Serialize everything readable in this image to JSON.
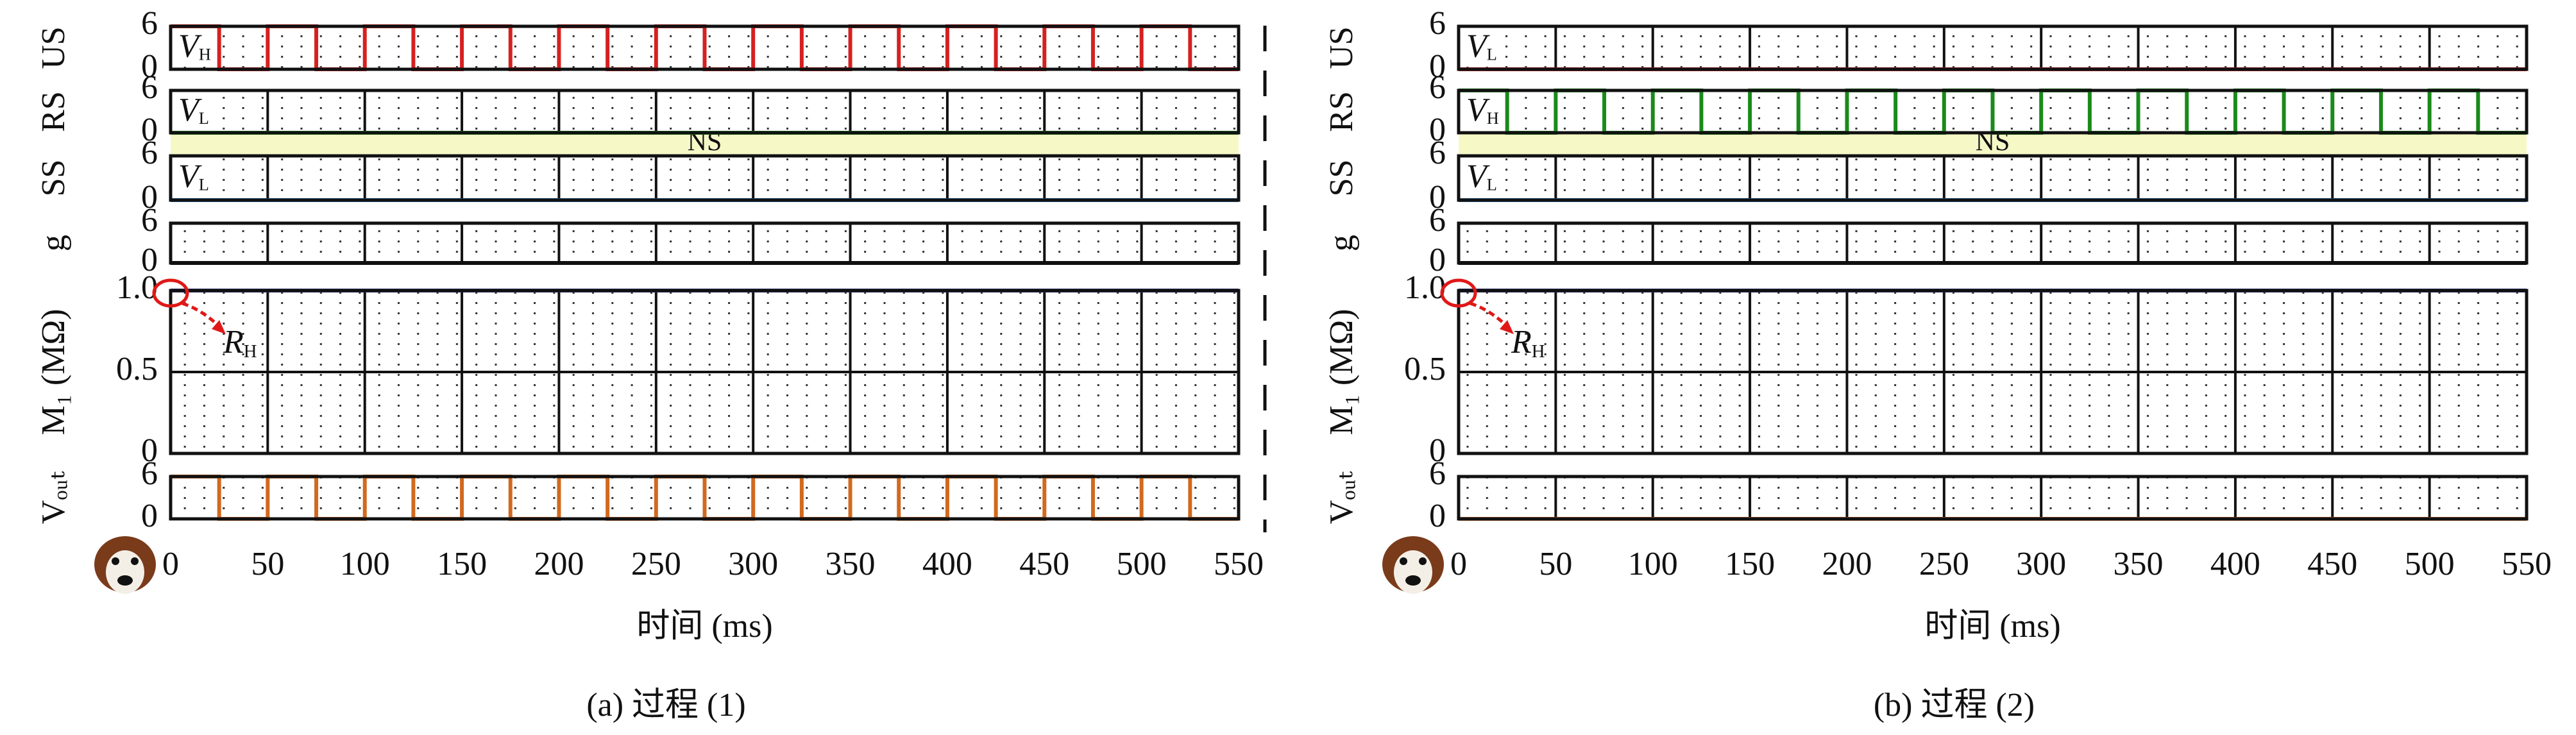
{
  "chart_data": [
    {
      "type": "step",
      "caption": "(a) 过程 (1)",
      "xlabel": "时间 (ms)",
      "ns_label": "NS",
      "xlim": [
        0,
        550
      ],
      "xticks": [
        0,
        50,
        100,
        150,
        200,
        250,
        300,
        350,
        400,
        450,
        500,
        550
      ],
      "subplots": [
        {
          "ylabel": "US",
          "color": "#d62020",
          "ylim": [
            0,
            6
          ],
          "yticks": [
            0,
            6
          ],
          "annotation": {
            "text": "V",
            "sub": "H"
          },
          "x": [
            0,
            25,
            50,
            75,
            100,
            125,
            150,
            175,
            200,
            225,
            250,
            275,
            300,
            325,
            350,
            375,
            400,
            425,
            450,
            475,
            500,
            525,
            550
          ],
          "values": [
            6,
            0,
            6,
            0,
            6,
            0,
            6,
            0,
            6,
            0,
            6,
            0,
            6,
            0,
            6,
            0,
            6,
            0,
            6,
            0,
            6,
            0,
            0
          ]
        },
        {
          "ylabel": "RS",
          "color": "#1a8a1a",
          "ylim": [
            0,
            6
          ],
          "yticks": [
            0,
            6
          ],
          "annotation": {
            "text": "V",
            "sub": "L"
          },
          "x": [
            0,
            550
          ],
          "values": [
            0,
            0
          ]
        },
        {
          "ylabel": "SS",
          "color": "#1f6fb4",
          "ylim": [
            0,
            6
          ],
          "yticks": [
            0,
            6
          ],
          "annotation": {
            "text": "V",
            "sub": "L"
          },
          "x": [
            0,
            550
          ],
          "values": [
            0,
            0
          ]
        },
        {
          "ylabel": "g",
          "color": "#000000",
          "ylim": [
            0,
            6
          ],
          "yticks": [
            0,
            6
          ],
          "x": [
            0,
            550
          ],
          "values": [
            0,
            0
          ]
        },
        {
          "ylabel": "M₁ (MΩ)",
          "color": "#2b2b8c",
          "ylim": [
            0,
            1
          ],
          "yticks": [
            0,
            0.5,
            {
              "value": 1,
              "label": "1.0"
            }
          ],
          "marker_label": {
            "text": "R",
            "sub": "H"
          },
          "x": [
            0,
            550
          ],
          "values": [
            1,
            1
          ]
        },
        {
          "ylabel": "Vₒᵤₜ",
          "color": "#d2691e",
          "ylim": [
            0,
            6
          ],
          "yticks": [
            0,
            6
          ],
          "x": [
            0,
            25,
            50,
            75,
            100,
            125,
            150,
            175,
            200,
            225,
            250,
            275,
            300,
            325,
            350,
            375,
            400,
            425,
            450,
            475,
            500,
            525,
            550
          ],
          "values": [
            6,
            0,
            6,
            0,
            6,
            0,
            6,
            0,
            6,
            0,
            6,
            0,
            6,
            0,
            6,
            0,
            6,
            0,
            6,
            0,
            6,
            0,
            0
          ]
        }
      ]
    },
    {
      "type": "step",
      "caption": "(b) 过程 (2)",
      "xlabel": "时间 (ms)",
      "ns_label": "NS",
      "xlim": [
        0,
        550
      ],
      "xticks": [
        0,
        50,
        100,
        150,
        200,
        250,
        300,
        350,
        400,
        450,
        500,
        550
      ],
      "subplots": [
        {
          "ylabel": "US",
          "color": "#d62020",
          "ylim": [
            0,
            6
          ],
          "yticks": [
            0,
            6
          ],
          "annotation": {
            "text": "V",
            "sub": "L"
          },
          "x": [
            0,
            550
          ],
          "values": [
            0,
            0
          ]
        },
        {
          "ylabel": "RS",
          "color": "#1a8a1a",
          "ylim": [
            0,
            6
          ],
          "yticks": [
            0,
            6
          ],
          "annotation": {
            "text": "V",
            "sub": "H"
          },
          "x": [
            0,
            25,
            50,
            75,
            100,
            125,
            150,
            175,
            200,
            225,
            250,
            275,
            300,
            325,
            350,
            375,
            400,
            425,
            450,
            475,
            500,
            525,
            550
          ],
          "values": [
            6,
            0,
            6,
            0,
            6,
            0,
            6,
            0,
            6,
            0,
            6,
            0,
            6,
            0,
            6,
            0,
            6,
            0,
            6,
            0,
            6,
            0,
            0
          ]
        },
        {
          "ylabel": "SS",
          "color": "#1f6fb4",
          "ylim": [
            0,
            6
          ],
          "yticks": [
            0,
            6
          ],
          "annotation": {
            "text": "V",
            "sub": "L"
          },
          "x": [
            0,
            550
          ],
          "values": [
            0,
            0
          ]
        },
        {
          "ylabel": "g",
          "color": "#000000",
          "ylim": [
            0,
            6
          ],
          "yticks": [
            0,
            6
          ],
          "x": [
            0,
            550
          ],
          "values": [
            0,
            0
          ]
        },
        {
          "ylabel": "M₁ (MΩ)",
          "color": "#2b2b8c",
          "ylim": [
            0,
            1
          ],
          "yticks": [
            0,
            0.5,
            {
              "value": 1,
              "label": "1.0"
            }
          ],
          "marker_label": {
            "text": "R",
            "sub": "H"
          },
          "x": [
            0,
            550
          ],
          "values": [
            1,
            1
          ]
        },
        {
          "ylabel": "Vₒᵤₜ",
          "color": "#d2691e",
          "ylim": [
            0,
            6
          ],
          "yticks": [
            0,
            6
          ],
          "x": [
            0,
            550
          ],
          "values": [
            0,
            0
          ]
        }
      ]
    }
  ]
}
